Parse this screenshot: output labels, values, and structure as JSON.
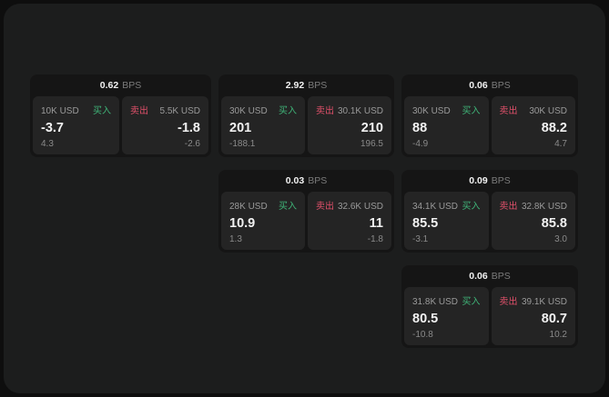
{
  "colors": {
    "page_bg": "#0e0e0e",
    "window_bg": "#1c1d1d",
    "card_bg": "#151515",
    "panel_bg": "#242424",
    "text_primary": "#f2f2f2",
    "text_secondary": "#9a9a9a",
    "text_muted": "#7c7c7c",
    "text_faint": "#8a8a8a",
    "buy_green": "#3fb478",
    "sell_red": "#e0506a"
  },
  "labels": {
    "bps_unit": "BPS",
    "buy": "买入",
    "sell": "卖出"
  },
  "cards": [
    {
      "row": 1,
      "col": 1,
      "bps": "0.62",
      "buy": {
        "size": "10K USD",
        "price": "-3.7",
        "delta": "4.3"
      },
      "sell": {
        "size": "5.5K USD",
        "price": "-1.8",
        "delta": "-2.6"
      }
    },
    {
      "row": 1,
      "col": 2,
      "bps": "2.92",
      "buy": {
        "size": "30K USD",
        "price": "201",
        "delta": "-188.1"
      },
      "sell": {
        "size": "30.1K USD",
        "price": "210",
        "delta": "196.5"
      }
    },
    {
      "row": 1,
      "col": 3,
      "bps": "0.06",
      "buy": {
        "size": "30K USD",
        "price": "88",
        "delta": "-4.9"
      },
      "sell": {
        "size": "30K USD",
        "price": "88.2",
        "delta": "4.7"
      }
    },
    {
      "row": 2,
      "col": 2,
      "bps": "0.03",
      "buy": {
        "size": "28K USD",
        "price": "10.9",
        "delta": "1.3"
      },
      "sell": {
        "size": "32.6K USD",
        "price": "11",
        "delta": "-1.8"
      }
    },
    {
      "row": 2,
      "col": 3,
      "bps": "0.09",
      "buy": {
        "size": "34.1K USD",
        "price": "85.5",
        "delta": "-3.1"
      },
      "sell": {
        "size": "32.8K USD",
        "price": "85.8",
        "delta": "3.0"
      }
    },
    {
      "row": 3,
      "col": 3,
      "bps": "0.06",
      "buy": {
        "size": "31.8K USD",
        "price": "80.5",
        "delta": "-10.8"
      },
      "sell": {
        "size": "39.1K USD",
        "price": "80.7",
        "delta": "10.2"
      }
    }
  ]
}
